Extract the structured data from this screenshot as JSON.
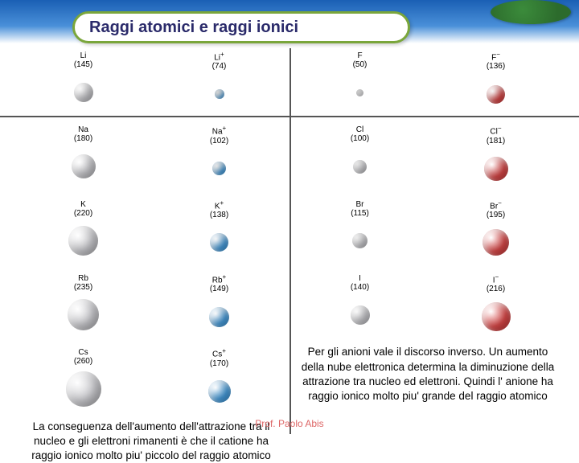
{
  "title": "Raggi atomici e raggi ionici",
  "footer": "Prof. Paolo Abis",
  "colors": {
    "neutral": "#c8c8cc",
    "cation": "#4aa0e0",
    "anion": "#d94a4a",
    "titleBorder": "#7aa63b",
    "titleText": "#2a2a6a"
  },
  "left": {
    "rows": [
      {
        "atom": {
          "sym": "Li",
          "radius": 145,
          "px": 24
        },
        "ion": {
          "sym": "Li",
          "charge": "+",
          "radius": 74,
          "px": 12
        }
      },
      {
        "atom": {
          "sym": "Na",
          "radius": 180,
          "px": 30
        },
        "ion": {
          "sym": "Na",
          "charge": "+",
          "radius": 102,
          "px": 17
        }
      },
      {
        "atom": {
          "sym": "K",
          "radius": 220,
          "px": 37
        },
        "ion": {
          "sym": "K",
          "charge": "+",
          "radius": 138,
          "px": 23
        }
      },
      {
        "atom": {
          "sym": "Rb",
          "radius": 235,
          "px": 39
        },
        "ion": {
          "sym": "Rb",
          "charge": "+",
          "radius": 149,
          "px": 25
        }
      },
      {
        "atom": {
          "sym": "Cs",
          "radius": 260,
          "px": 44
        },
        "ion": {
          "sym": "Cs",
          "charge": "+",
          "radius": 170,
          "px": 28
        }
      }
    ],
    "para": "La conseguenza dell'aumento dell'attrazione tra il nucleo e gli elettroni rimanenti è che il catione ha raggio ionico molto piu' piccolo del raggio atomico"
  },
  "right": {
    "rows": [
      {
        "atom": {
          "sym": "F",
          "radius": 50,
          "px": 9
        },
        "ion": {
          "sym": "F",
          "charge": "−",
          "radius": 136,
          "px": 23
        }
      },
      {
        "atom": {
          "sym": "Cl",
          "radius": 100,
          "px": 17
        },
        "ion": {
          "sym": "Cl",
          "charge": "−",
          "radius": 181,
          "px": 30
        }
      },
      {
        "atom": {
          "sym": "Br",
          "radius": 115,
          "px": 19
        },
        "ion": {
          "sym": "Br",
          "charge": "−",
          "radius": 195,
          "px": 33
        }
      },
      {
        "atom": {
          "sym": "I",
          "radius": 140,
          "px": 24
        },
        "ion": {
          "sym": "I",
          "charge": "−",
          "radius": 216,
          "px": 36
        }
      }
    ],
    "para": "Per gli anioni vale il discorso inverso. Un aumento della nube elettronica determina la diminuzione della attrazione tra nucleo ed elettroni. Quindi l' anione ha raggio ionico molto piu' grande del raggio atomico"
  }
}
